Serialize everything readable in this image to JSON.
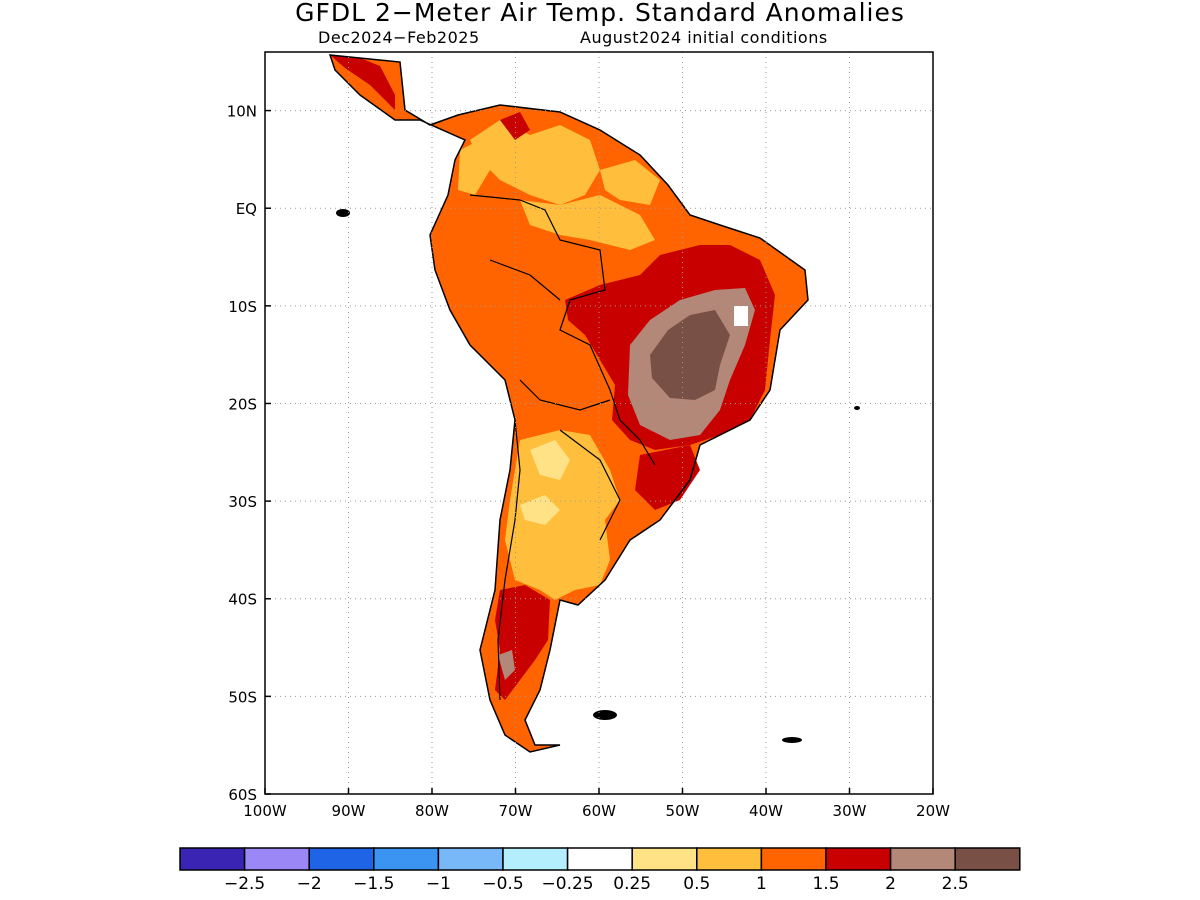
{
  "title": "GFDL 2−Meter Air Temp. Standard Anomalies",
  "subtitle_period": "Dec2024−Feb2025",
  "subtitle_init": "August2024 initial conditions",
  "axes": {
    "lon_labels": [
      "100W",
      "90W",
      "80W",
      "70W",
      "60W",
      "50W",
      "40W",
      "30W",
      "20W"
    ],
    "lon_values": [
      -100,
      -90,
      -80,
      -70,
      -60,
      -50,
      -40,
      -30,
      -20
    ],
    "lat_labels": [
      "10N",
      "EQ",
      "10S",
      "20S",
      "30S",
      "40S",
      "50S",
      "60S"
    ],
    "lat_values": [
      10,
      0,
      -10,
      -20,
      -30,
      -40,
      -50,
      -60
    ],
    "lon_range": [
      -100,
      -20
    ],
    "lat_range": [
      -60,
      16
    ],
    "grid": "dotted"
  },
  "colorbar": {
    "colors": [
      "#3a24b4",
      "#9b87f5",
      "#1f63e6",
      "#3c94f2",
      "#78b8f8",
      "#b4eefc",
      "#ffffff",
      "#ffe285",
      "#ffbe3c",
      "#ff6400",
      "#c80000",
      "#b48878",
      "#785046"
    ],
    "labels": [
      "−2.5",
      "−2",
      "−1.5",
      "−1",
      "−0.5",
      "−0.25",
      "0.25",
      "0.5",
      "1",
      "1.5",
      "2",
      "2.5"
    ]
  },
  "map": {
    "regions": [
      {
        "name": "continent-base",
        "class": "1-1.5",
        "color": "#ff6400"
      },
      {
        "name": "brazil-interior-hot",
        "class": "1.5-2",
        "color": "#c80000"
      },
      {
        "name": "brazil-central-core",
        "class": "2-2.5",
        "color": "#b48878"
      },
      {
        "name": "brazil-central-max",
        "class": ">2.5",
        "color": "#785046"
      },
      {
        "name": "argentina-mild",
        "class": "0.5-1",
        "color": "#ffbe3c"
      },
      {
        "name": "patagonia-hot",
        "class": "1.5-2",
        "color": "#c80000"
      }
    ]
  }
}
